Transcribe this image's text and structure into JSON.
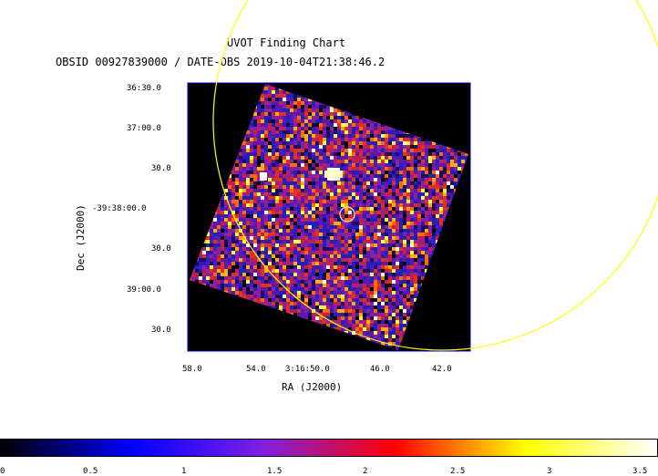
{
  "title": {
    "line1": "UVOT Finding Chart",
    "line2": "OBSID 00927839000 / DATE-OBS 2019-10-04T21:38:46.2"
  },
  "axes": {
    "xlabel": "RA (J2000)",
    "ylabel": "Dec (J2000)",
    "dec_ticks": [
      "36:30.0",
      "37:00.0",
      "30.0",
      "-39:38:00.0",
      "30.0",
      "39:00.0",
      "30.0"
    ],
    "ra_ticks": [
      "58.0",
      "54.0",
      "3:16:50.0",
      "46.0",
      "42.0"
    ]
  },
  "colorbar": {
    "ticks": [
      "0",
      "0.5",
      "1",
      "1.5",
      "2",
      "2.5",
      "3",
      "3.5"
    ],
    "colors": [
      "#000000",
      "#0000ff",
      "#8020e0",
      "#ff0000",
      "#ffff00",
      "#ffffff"
    ]
  },
  "overlay": {
    "large_circle_color": "#ffff00",
    "source_circle_color": "#ffe6a0"
  }
}
